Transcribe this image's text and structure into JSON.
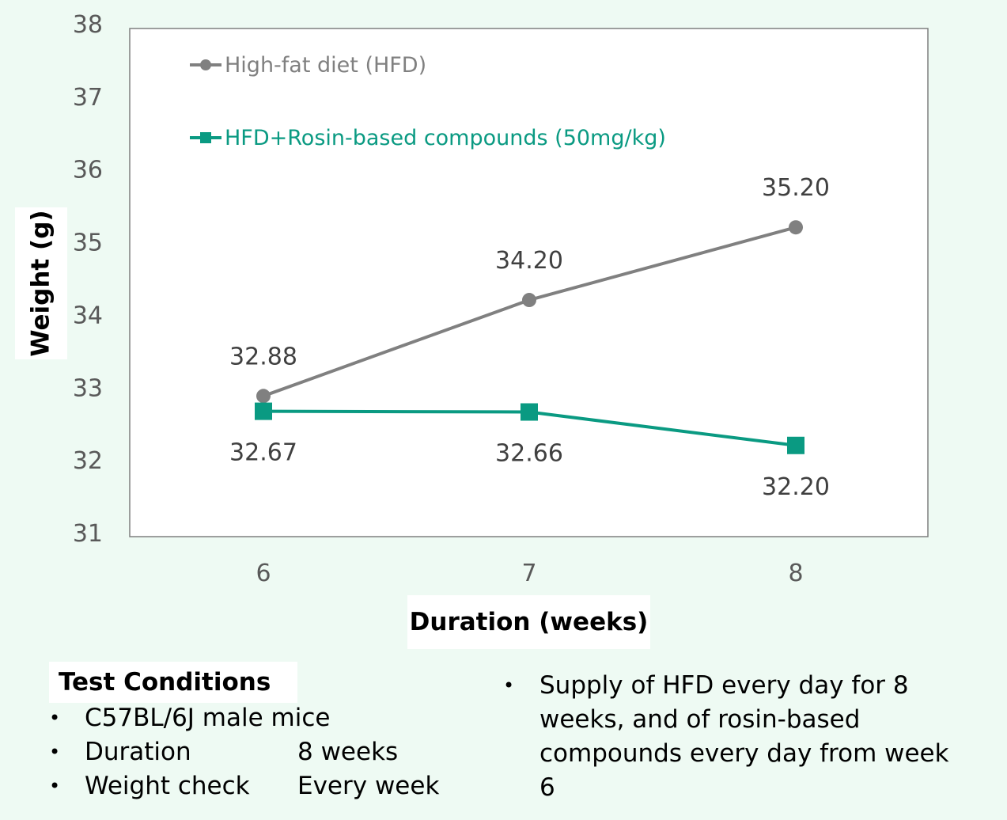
{
  "chart_data": {
    "type": "line",
    "x": [
      6,
      7,
      8
    ],
    "xticks": [
      "6",
      "7",
      "8"
    ],
    "yticks": [
      "31",
      "32",
      "33",
      "34",
      "35",
      "36",
      "37",
      "38"
    ],
    "ylim": [
      31,
      38
    ],
    "xlabel": "Duration (weeks)",
    "ylabel": "Weight (g)",
    "legend_position": "top-left",
    "series": [
      {
        "name": "High-fat diet (HFD)",
        "values": [
          32.88,
          34.2,
          35.2
        ],
        "labels": [
          "32.88",
          "34.20",
          "35.20"
        ],
        "color": "#808080",
        "marker": "circle"
      },
      {
        "name": "HFD+Rosin-based compounds (50mg/kg)",
        "values": [
          32.67,
          32.66,
          32.2
        ],
        "labels": [
          "32.67",
          "32.66",
          "32.20"
        ],
        "color": "#0a9a82",
        "marker": "square"
      }
    ]
  },
  "conditions": {
    "title": "Test Conditions",
    "bullet": "•",
    "items": [
      {
        "key": "C57BL/6J male mice",
        "value": ""
      },
      {
        "key": "Duration",
        "value": "8 weeks"
      },
      {
        "key": "Weight check",
        "value": "Every week"
      }
    ],
    "supply": "Supply of HFD every day for 8 weeks, and of rosin-based compounds every day from week 6"
  }
}
